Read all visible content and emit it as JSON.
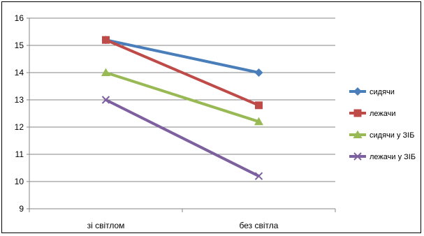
{
  "chart_data": {
    "type": "line",
    "categories": [
      "зі світлом",
      "без світла"
    ],
    "ylim": [
      9,
      16
    ],
    "yticks": [
      9,
      10,
      11,
      12,
      13,
      14,
      15,
      16
    ],
    "grid": true,
    "legend_position": "right",
    "series": [
      {
        "name": "сидячи",
        "values": [
          15.2,
          14.0
        ],
        "color": "#4a7ebb",
        "marker": "diamond"
      },
      {
        "name": "лежачи",
        "values": [
          15.2,
          12.8
        ],
        "color": "#be4b48",
        "marker": "square"
      },
      {
        "name": "сидячи у ЗІБ",
        "values": [
          14.0,
          12.2
        ],
        "color": "#98b954",
        "marker": "triangle"
      },
      {
        "name": "лежачи у ЗІБ",
        "values": [
          13.0,
          10.2
        ],
        "color": "#7d60a0",
        "marker": "x"
      }
    ]
  }
}
